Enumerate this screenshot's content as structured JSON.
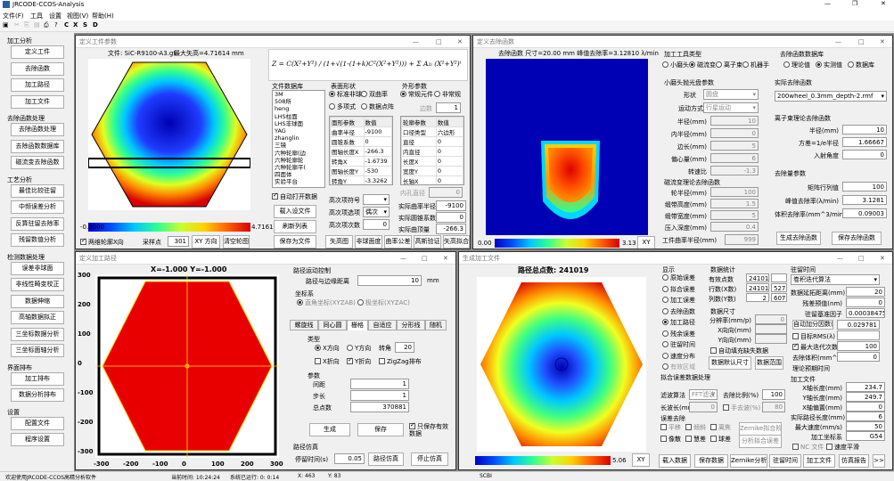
{
  "app": {
    "title": "JRCODE-CCOS-Analysis"
  },
  "menu": [
    "文件(F)",
    "工具",
    "设置",
    "视图(V)",
    "帮助(H)"
  ],
  "sidebar": {
    "groups": [
      {
        "title": "加工分析",
        "items": [
          "定义工件",
          "去除函数",
          "加工路径",
          "加工文件"
        ]
      },
      {
        "title": "去除函数处理",
        "items": [
          "去除函数处理",
          "去除函数数据库",
          "磁流变去除函数"
        ]
      },
      {
        "title": "工艺分析",
        "items": [
          "最佳比较驻留",
          "中频误差分析",
          "反算驻留去除率",
          "残留数值分析"
        ]
      },
      {
        "title": "检测数据处理",
        "items": [
          "误差非球面",
          "非线性畸变校正",
          "数据伸缩",
          "高轴数据拟正",
          "三坐标数据分析",
          "三坐标面轴分析"
        ]
      },
      {
        "title": "界面排布",
        "items": [
          "加工排布",
          "数据分析排布"
        ]
      },
      {
        "title": "设置",
        "items": [
          "配置文件",
          "程序设置"
        ]
      }
    ]
  },
  "status": {
    "left": "欢迎使用JRCODE-CCOS高精分析软件",
    "time": "当前时间: 10:24:24",
    "mem": "系统已运行: 0: 0:14",
    "x": "X: 463",
    "y": "Y: 83",
    "mode": "SCBI"
  },
  "w1": {
    "title": "定义工件参数",
    "file": "文件: SiC-R9100-A3.gt",
    "sag": "最大矢高=4.71614 mm",
    "cmin": "-0.0000",
    "cmax": "4.7161",
    "formula": "Z = C(X²+Y²) / (1+√(1-(1+k)C²(X²+Y²))) + Σ A₂ᵢ (X²+Y²)ⁱ",
    "db_title": "文件数据库",
    "db_items": [
      "3M",
      "508所",
      "heng",
      "LHS柱面",
      "LHS非球面",
      "YAG",
      "zhanglin",
      "三镜",
      "六种轮廓(边",
      "六种轮廓轮",
      "六种轮廓平(",
      "四面体",
      "实验平台"
    ],
    "shape_title": "表面形状",
    "shapes": [
      "标准非球",
      "双曲率",
      "多项式",
      "数据点阵"
    ],
    "outline_title": "外形参数",
    "outlines": [
      "常规元件",
      "非常规"
    ],
    "param_hdr": [
      "面形参数",
      "数值"
    ],
    "params": [
      [
        "曲率半径",
        "-9100"
      ],
      [
        "圆锥系数",
        "0"
      ],
      [
        "图轴长度X",
        "-266.3"
      ],
      [
        "转角X",
        "-1.6739"
      ],
      [
        "图轴长度Y",
        "-530"
      ],
      [
        "转角Y",
        "-3.3262"
      ]
    ],
    "outline_hdr": [
      "轮廓参数",
      "数值"
    ],
    "outline_params": [
      [
        "口径类型",
        "六边形"
      ],
      [
        "直径",
        "0"
      ],
      [
        "内直径",
        "0"
      ],
      [
        "长度X",
        "0"
      ],
      [
        "宽度Y",
        "0"
      ],
      [
        "长轴X",
        "0"
      ]
    ],
    "edge_count": "边数",
    "edge_val": "1",
    "inner_dia": "内孔直径",
    "inner_val": "0",
    "auto_open": "自动打开数据",
    "load_file": "载入设文件",
    "refresh": "刷新列表",
    "save_file": "保存为文件",
    "hi_term": "高次项符号",
    "hi_sel": "",
    "hi_opt": "高次项选项",
    "hi_opt_sel": "偶次",
    "hi_num": "高次项次数",
    "hi_num_val": "0",
    "real_r": "实际曲率半径",
    "real_r_val": "-9100",
    "real_k": "实际圆锥系数",
    "real_k_val": "0",
    "real_top": "实际曲顶量",
    "real_top_val": "-266.3",
    "btns": [
      "矢高图",
      "非球面度",
      "曲率公差",
      "高斯验证",
      "矢高拟合"
    ],
    "chk_two": "两维轮廓X向",
    "sample": "采样点",
    "sample_val": "301",
    "xy": "XY 方向",
    "clear": "清空轮图"
  },
  "w2": {
    "title": "定义去除函数",
    "info": "去除函数 尺寸=20.00 mm  峰值去除率=3.12810 λ/min",
    "cmin": "0.00",
    "cmax": "3.13",
    "xy": "XY",
    "tool_title": "加工工具类型",
    "tools": [
      "小磨头",
      "磁流变",
      "离子束",
      "机器手"
    ],
    "small_title": "小磨头抛光盘参数",
    "shape": "形状",
    "shape_val": "圆盘",
    "motion": "运动方式",
    "motion_val": "行星运动",
    "small_fields": [
      [
        "半径(mm)",
        "10"
      ],
      [
        "内半径(mm)",
        "0"
      ],
      [
        "边长(mm)",
        "5"
      ],
      [
        "偏心量(mm)",
        "6"
      ],
      [
        "转速比",
        "-1.3"
      ]
    ],
    "mrf_title": "磁流变理论去除函数",
    "mrf_fields": [
      [
        "轮半径(mm)",
        "100"
      ],
      [
        "缎带高度(mm)",
        "1.5"
      ],
      [
        "缎带宽度(mm)",
        "5"
      ],
      [
        "压入深度(mm)",
        "0.4"
      ]
    ],
    "mrf_rate": "工件曲率半径(mm)",
    "mrf_rate_val": "999",
    "lib_title": "去除函数数据库",
    "lib_opts": [
      "理论值",
      "实测值",
      "数据库"
    ],
    "real_title": "实际去除函数",
    "real_file": "200wheel_0.3mm_depth-2.rmf",
    "ion_title": "离子束理论去除函数",
    "ion_fields": [
      [
        "半径(mm)",
        "10"
      ],
      [
        "方差=1/e半径",
        "1.66667"
      ],
      [
        "入射角度",
        "0"
      ]
    ],
    "amt_title": "去除量参数",
    "amt_fields": [
      [
        "矩阵行列值",
        "100"
      ],
      [
        "峰值去除率(λ/min)",
        "3.1281"
      ],
      [
        "体积去除率(mm^3/min)",
        "0.09003"
      ]
    ],
    "gen": "生成去除函数",
    "save": "保存去除函数"
  },
  "w3": {
    "title": "定义加工路径",
    "pos": "X=-1.000  Y=-1.000",
    "axis": [
      "-300",
      "-200",
      "-100",
      "0",
      "100",
      "200",
      "300"
    ],
    "ctrl_title": "路径运动控制",
    "edge_dist": "路径与边缘距离",
    "edge_val": "10",
    "mm": "mm",
    "coord_title": "坐标系",
    "coords": [
      "直角坐标(XYZAB)",
      "极坐标(XYZAC)"
    ],
    "tabs": [
      "螺旋线",
      "同心圆",
      "栅格",
      "自适应",
      "分形线",
      "随机"
    ],
    "type_title": "类型",
    "types": [
      "X方向",
      "Y方向"
    ],
    "angle": "转角",
    "angle_val": "20",
    "chks": [
      "X折向",
      "Y折向",
      "ZigZag排布"
    ],
    "p_title": "参数",
    "p_fields": [
      [
        "间距",
        "1"
      ],
      [
        "步长",
        "1"
      ],
      [
        "总点数",
        "370881"
      ]
    ],
    "gen": "生成",
    "save": "保存",
    "auto": "只保存有效数据",
    "sim_title": "路径仿真",
    "sim_time": "停留时间(s)",
    "sim_val": "0.05",
    "sim": "路径仿真",
    "stop": "停止仿真"
  },
  "w4": {
    "title": "生成加工文件",
    "header": "路径总点数: 241019",
    "cmin": "0.00",
    "cmax": "5.06",
    "xy": "XY",
    "disp_title": "显示",
    "disp": [
      "原始误差",
      "拟合误差",
      "加工误差",
      "去除函数",
      "加工路径",
      "残余误差",
      "驻留时间",
      "速度分布",
      "有效区域"
    ],
    "stat_title": "数据统计",
    "stats": [
      [
        "有效点数",
        "241019",
        ""
      ],
      [
        "行数(X数)",
        "241019",
        "527"
      ],
      [
        "列数(Y数)",
        "2",
        "607"
      ]
    ],
    "size_title": "数据尺寸",
    "size": [
      [
        "分辨率(mm/p)",
        "0"
      ],
      [
        "X向向(mm)",
        ""
      ],
      [
        "Y向向(mm)",
        ""
      ]
    ],
    "auto_fill": "自动填充缺失数据",
    "def_size": "数据默认尺寸",
    "range": "数据范围",
    "fit_title": "拟合误差数据处理",
    "filter": "FFT滤波",
    "shrink": "去除比例(%)",
    "shrink_val": "100",
    "len": "长波长(mm)",
    "len_val": "0",
    "keep": "手去波(%)",
    "keep_val": "80",
    "err_title": "误差去除",
    "errs": [
      "平移",
      "倾斜",
      "离焦",
      "像散",
      "慧差",
      "球差"
    ],
    "zernike": "Zernike拟合阶",
    "analyze": "分析拟合误差",
    "dwell_title": "驻留时间",
    "dwell_sel": "卷积迭代算法",
    "dwell_fields": [
      [
        "数据延拓距离(mm)",
        "20"
      ],
      [
        "残差预值(nm)",
        "0"
      ],
      [
        "驻留基准因子",
        "0.00038475"
      ]
    ],
    "auto_dwell": "自动加分因数()",
    "auto_dwell_val": "0.029781",
    "rms": "目标RMS(λ)",
    "rms_val": "",
    "iter": "最大迭代次数",
    "iter_val": "100",
    "obj": "去除体积(mm^3)",
    "obj_val": "0",
    "theory": "理论预期时间",
    "file_title": "加工文件",
    "file_fields": [
      [
        "X轴长度(mm)",
        "234.7"
      ],
      [
        "Y轴长度(mm)",
        "249.7"
      ],
      [
        "X轴偏置(mm)",
        "0"
      ],
      [
        "实际路径长度(mm)",
        "6"
      ],
      [
        "最大速度(mm/s)",
        "50"
      ],
      [
        "加工坐标系",
        "G54"
      ]
    ],
    "nc": "NC 文件",
    "speed_ctrl": "速度平滑",
    "btns": [
      "载入数据",
      "保存数据",
      "Zernike分析",
      "加工文件",
      "驻留时间",
      "加工文件",
      "仿真报告",
      ">>"
    ]
  }
}
